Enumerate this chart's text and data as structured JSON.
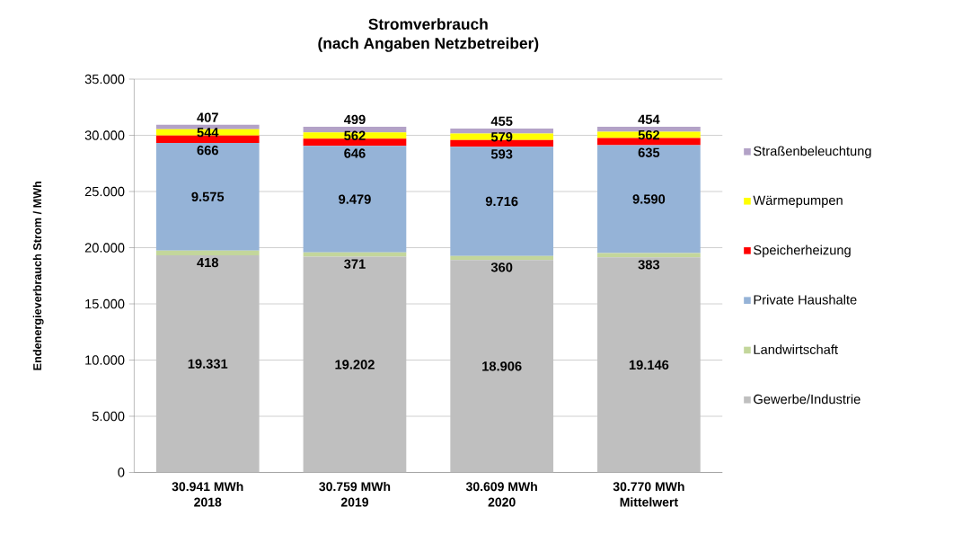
{
  "chart_data": {
    "type": "bar",
    "stacked": true,
    "title": "Stromverbrauch",
    "subtitle": "(nach Angaben Netzbetreiber)",
    "ylabel": "Endenergieverbrauch Strom / MWh",
    "categories": [
      "30.941 MWh 2018",
      "30.759 MWh 2019",
      "30.609 MWh 2020",
      "30.770 MWh Mittelwert"
    ],
    "series": [
      {
        "name": "Gewerbe/Industrie",
        "color": "#bfbfbf",
        "values": [
          19331,
          19202,
          18906,
          19146
        ],
        "value_labels": [
          "19.331",
          "19.202",
          "18.906",
          "19.146"
        ]
      },
      {
        "name": "Landwirtschaft",
        "color": "#c3d69b",
        "values": [
          418,
          371,
          360,
          383
        ],
        "value_labels": [
          "418",
          "371",
          "360",
          "383"
        ]
      },
      {
        "name": "Private Haushalte",
        "color": "#95b3d7",
        "values": [
          9575,
          9479,
          9716,
          9590
        ],
        "value_labels": [
          "9.575",
          "9.479",
          "9.716",
          "9.590"
        ]
      },
      {
        "name": "Speicherheizung",
        "color": "#ff0000",
        "values": [
          666,
          646,
          593,
          635
        ],
        "value_labels": [
          "666",
          "646",
          "593",
          "635"
        ]
      },
      {
        "name": "Wärmepumpen",
        "color": "#ffff00",
        "values": [
          544,
          562,
          579,
          562
        ],
        "value_labels": [
          "544",
          "562",
          "579",
          "562"
        ]
      },
      {
        "name": "Straßenbeleuchtung",
        "color": "#b3a2c7",
        "values": [
          407,
          499,
          455,
          454
        ],
        "value_labels": [
          "407",
          "499",
          "455",
          "454"
        ]
      }
    ],
    "ylim": [
      0,
      35000
    ],
    "yticks": [
      0,
      {
        "value": 5000,
        "label": "5.000"
      },
      {
        "value": 10000,
        "label": "10.000"
      },
      {
        "value": 15000,
        "label": "15.000"
      },
      {
        "value": 20000,
        "label": "20.000"
      },
      {
        "value": 25000,
        "label": "25.000"
      },
      {
        "value": 30000,
        "label": "30.000"
      },
      {
        "value": 35000,
        "label": "35.000"
      }
    ],
    "grid": "y",
    "legend": "right"
  }
}
